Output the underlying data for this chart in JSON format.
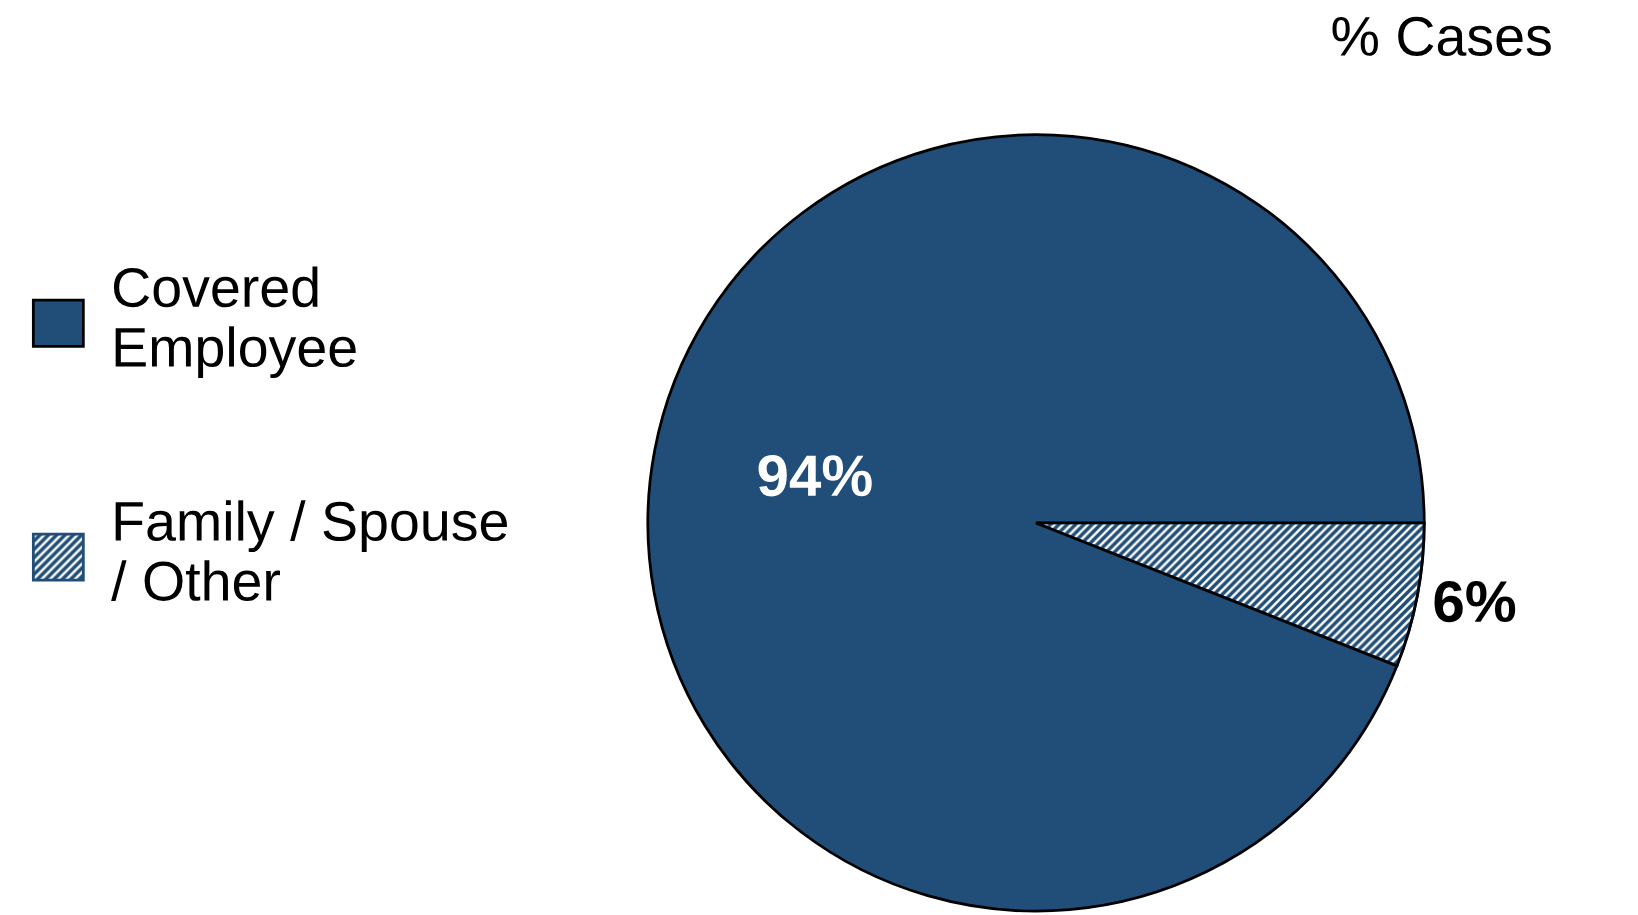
{
  "chart_data": {
    "type": "pie",
    "title": "% Cases",
    "categories": [
      "Covered\nEmployee",
      "Family / Spouse\n/ Other"
    ],
    "values": [
      94,
      6
    ],
    "colors": [
      "#214e78",
      "#214e78"
    ],
    "value_labels": [
      "94%",
      "6%"
    ],
    "legend": "left"
  }
}
